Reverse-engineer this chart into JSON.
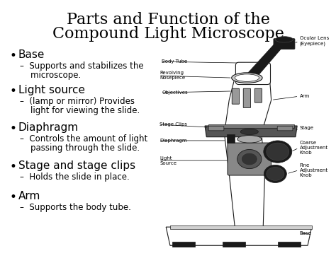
{
  "title_line1": "Parts and Function of the",
  "title_line2": "Compound Light Microscope",
  "background_color": "#ffffff",
  "title_fontsize": 16,
  "bullet_items": [
    {
      "bullet": "Base",
      "sub": "Supports and stabilizes the\nmicroscope."
    },
    {
      "bullet": "Light source",
      "sub": "(lamp or mirror) Provides\nlight for viewing the slide."
    },
    {
      "bullet": "Diaphragm",
      "sub": "Controls the amount of light\npassing through the slide."
    },
    {
      "bullet": "Stage and stage clips",
      "sub": "Holds the slide in place."
    },
    {
      "bullet": "Arm",
      "sub": "Supports the body tube."
    }
  ],
  "text_color": "#000000",
  "bullet_fontsize": 11,
  "sub_fontsize": 8.5,
  "body_color": "#f0f0f0",
  "dark_color": "#1a1a1a",
  "mid_color": "#888888",
  "white_color": "#ffffff",
  "arm_color": "#e0e0e0"
}
